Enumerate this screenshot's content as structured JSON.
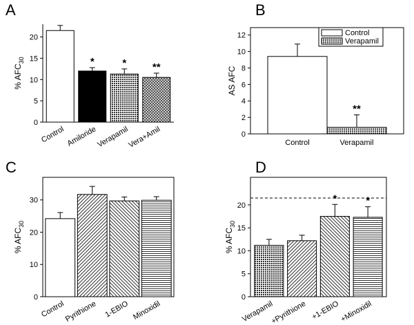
{
  "chart_data": [
    {
      "type": "bar",
      "panel": "A",
      "ylabel": "% AFC",
      "ylabel_sub": "30",
      "categories": [
        "Control",
        "Amiloride",
        "Verapamil",
        "Vera+Amil"
      ],
      "values": [
        21.5,
        12,
        11.3,
        10.5
      ],
      "errors": [
        1.2,
        0.8,
        1.2,
        1.0
      ],
      "bar_styles": [
        "white",
        "black",
        "crosshatch",
        "crosshatch-light"
      ],
      "annotations": [
        {
          "index": 1,
          "text": "*"
        },
        {
          "index": 2,
          "text": "*"
        },
        {
          "index": 3,
          "text": "**"
        }
      ],
      "ylim": [
        0,
        23
      ],
      "yticks": [
        0,
        5,
        10,
        15,
        20
      ]
    },
    {
      "type": "bar",
      "panel": "B",
      "ylabel": "AS AFC",
      "categories": [
        "Control",
        "Verapamil"
      ],
      "values": [
        9.4,
        0.8
      ],
      "errors": [
        1.5,
        1.5
      ],
      "bar_styles": [
        "white",
        "crosshatch"
      ],
      "legend": [
        {
          "name": "Control",
          "style": "white"
        },
        {
          "name": "Verapamil",
          "style": "crosshatch"
        }
      ],
      "annotations": [
        {
          "index": 1,
          "text": "**"
        }
      ],
      "ylim": [
        0,
        12.9
      ],
      "yticks": [
        0,
        2,
        4,
        6,
        8,
        10,
        12
      ]
    },
    {
      "type": "bar",
      "panel": "C",
      "ylabel": "% AFC",
      "ylabel_sub": "30",
      "categories": [
        "Control",
        "Pyrithione",
        "1-EBIO",
        "Minoxidil"
      ],
      "values": [
        24.2,
        31.7,
        29.7,
        29.9
      ],
      "errors": [
        1.9,
        2.5,
        1.2,
        1.1
      ],
      "bar_styles": [
        "white",
        "diagonal-up",
        "diagonal-down",
        "horizontal"
      ],
      "ylim": [
        0,
        37
      ],
      "yticks": [
        0,
        10,
        20,
        30
      ]
    },
    {
      "type": "bar",
      "panel": "D",
      "ylabel": "% AFC",
      "ylabel_sub": "30",
      "categories": [
        "Verapamil",
        "+Pyrithione",
        "+1-EBIO",
        "+Minoxidil"
      ],
      "values": [
        11.2,
        12.2,
        17.5,
        17.3
      ],
      "errors": [
        1.3,
        1.2,
        2.6,
        2.3
      ],
      "bar_styles": [
        "crosshatch",
        "diagonal-up",
        "diagonal-down",
        "horizontal"
      ],
      "annotations": [
        {
          "index": 2,
          "text": "*"
        },
        {
          "index": 3,
          "text": "*"
        }
      ],
      "ref_line": 21.5,
      "ylim": [
        0,
        26
      ],
      "yticks": [
        0,
        5,
        10,
        15,
        20
      ]
    }
  ]
}
